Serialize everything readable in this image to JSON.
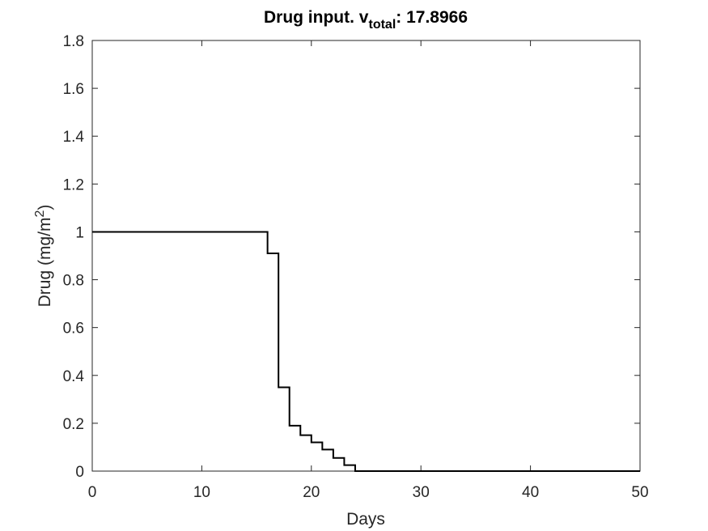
{
  "chart_data": {
    "type": "line",
    "style": "step",
    "title": {
      "prefix": "Drug input. v",
      "subscript": "total",
      "suffix": ": 17.8966"
    },
    "xlabel": "Days",
    "ylabel": {
      "prefix": "Drug (mg/m",
      "superscript": "2",
      "suffix": ")"
    },
    "xlim": [
      0,
      50
    ],
    "ylim": [
      0,
      1.8
    ],
    "xticks": [
      0,
      10,
      20,
      30,
      40,
      50
    ],
    "xtick_labels": [
      "0",
      "10",
      "20",
      "30",
      "40",
      "50"
    ],
    "yticks": [
      0,
      0.2,
      0.4,
      0.6,
      0.8,
      1,
      1.2,
      1.4,
      1.6,
      1.8
    ],
    "ytick_labels": [
      "0",
      "0.2",
      "0.4",
      "0.6",
      "0.8",
      "1",
      "1.2",
      "1.4",
      "1.6",
      "1.8"
    ],
    "grid": false,
    "series": [
      {
        "color": "#000000",
        "points": [
          {
            "x": 0,
            "y": 1
          },
          {
            "x": 16,
            "y": 0.91
          },
          {
            "x": 17,
            "y": 0.35
          },
          {
            "x": 18,
            "y": 0.19
          },
          {
            "x": 19,
            "y": 0.15
          },
          {
            "x": 20,
            "y": 0.12
          },
          {
            "x": 21,
            "y": 0.09
          },
          {
            "x": 22,
            "y": 0.055
          },
          {
            "x": 23,
            "y": 0.025
          },
          {
            "x": 24,
            "y": 0
          },
          {
            "x": 50,
            "y": 0
          }
        ]
      }
    ]
  }
}
